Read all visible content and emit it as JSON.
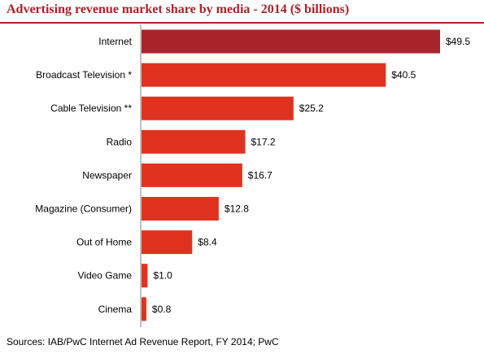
{
  "chart_data": {
    "type": "bar",
    "orientation": "horizontal",
    "title": "Advertising revenue market share by media - 2014 ($ billions)",
    "categories": [
      "Internet",
      "Broadcast Television *",
      "Cable Television **",
      "Radio",
      "Newspaper",
      "Magazine (Consumer)",
      "Out of Home",
      "Video Game",
      "Cinema"
    ],
    "values": [
      49.5,
      40.5,
      25.2,
      17.2,
      16.7,
      12.8,
      8.4,
      1.0,
      0.8
    ],
    "value_labels": [
      "$49.5",
      "$40.5",
      "$25.2",
      "$17.2",
      "$16.7",
      "$12.8",
      "$8.4",
      "$1.0",
      "$0.8"
    ],
    "xlim": [
      0,
      49.5
    ],
    "grid": false,
    "legend": "none",
    "colors": {
      "highlight": "#a8232a",
      "bar": "#e0321f",
      "axis": "#808080",
      "title": "#a8232a"
    },
    "highlight_index": 0
  },
  "source": "Sources: IAB/PwC Internet Ad Revenue Report, FY 2014; PwC"
}
